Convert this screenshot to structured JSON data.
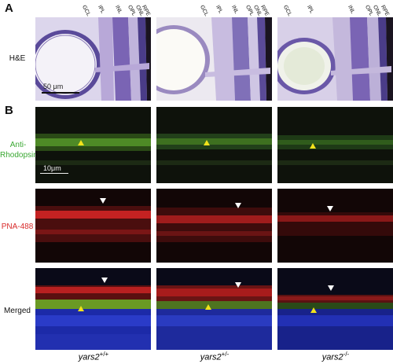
{
  "panels": {
    "a": "A",
    "b": "B"
  },
  "row_labels": {
    "he": "H&E",
    "anti_rho_line1": "Anti-",
    "anti_rho_line2": "Rhodopsin",
    "pna": "PNA-488",
    "merged": "Merged"
  },
  "layers": [
    "GCL",
    "IPL",
    "INL",
    "OPL",
    "ONL",
    "RPE"
  ],
  "scale_bars": {
    "he": "50 μm",
    "fluor": "10μm"
  },
  "genotypes": [
    {
      "base": "yars2",
      "sup": "+/+"
    },
    {
      "base": "yars2",
      "sup": "+/-"
    },
    {
      "base": "yars2",
      "sup": "-/-"
    }
  ],
  "colors": {
    "he_stain": "#6a4fa8",
    "rhodopsin": "#6fcf3a",
    "pna": "#e03030",
    "dapi": "#2a3bc8",
    "arrow_yellow": "#f2e21b",
    "arrow_white": "#ffffff"
  }
}
